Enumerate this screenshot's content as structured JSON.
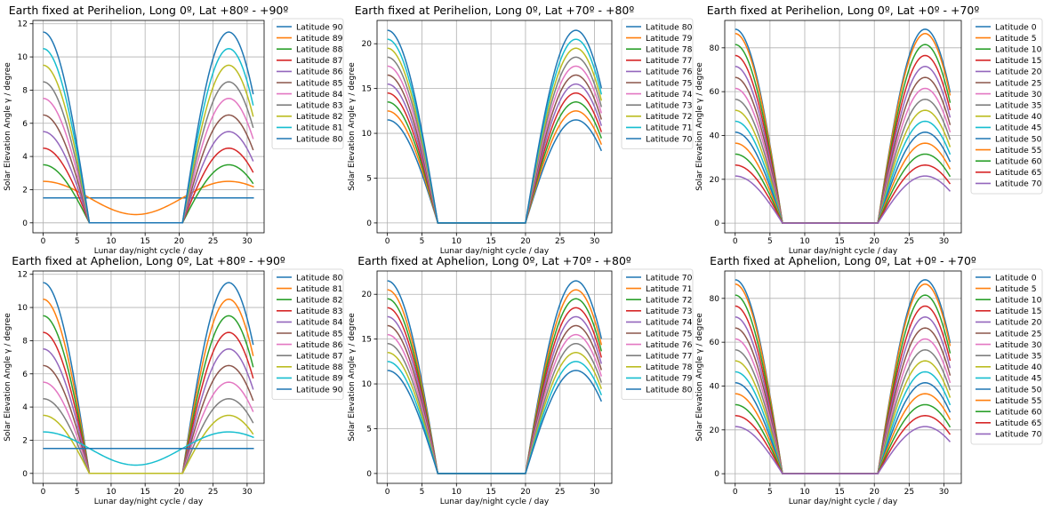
{
  "palette": [
    "#1f77b4",
    "#ff7f0e",
    "#2ca02c",
    "#d62728",
    "#9467bd",
    "#8c564b",
    "#e377c2",
    "#7f7f7f",
    "#bcbd22",
    "#17becf"
  ],
  "chart_data": [
    {
      "type": "line",
      "title": "Earth fixed at Perihelion, Long 0º, Lat +80º - +90º",
      "xlabel": "Lunar day/night cycle / day",
      "ylabel": "Solar Elevation Angle γ / degree",
      "xlim": [
        -1.5,
        32.5
      ],
      "ylim": [
        -0.6,
        12.2
      ],
      "xticks": [
        0,
        5,
        10,
        15,
        20,
        25,
        30
      ],
      "yticks": [
        0,
        2,
        4,
        6,
        8,
        10,
        12
      ],
      "grid": true,
      "legend_position": "outside-right",
      "x_range": [
        0,
        31
      ],
      "sunset_day": 6.8,
      "sunrise_day": 20.5,
      "series": [
        {
          "name": "Latitude 90",
          "peak_elevation": 1.5,
          "color_index": 0
        },
        {
          "name": "Latitude 89",
          "peak_elevation": 2.5,
          "color_index": 1
        },
        {
          "name": "Latitude 88",
          "peak_elevation": 3.5,
          "color_index": 2
        },
        {
          "name": "Latitude 87",
          "peak_elevation": 4.5,
          "color_index": 3
        },
        {
          "name": "Latitude 86",
          "peak_elevation": 5.5,
          "color_index": 4
        },
        {
          "name": "Latitude 85",
          "peak_elevation": 6.5,
          "color_index": 5
        },
        {
          "name": "Latitude 84",
          "peak_elevation": 7.5,
          "color_index": 6
        },
        {
          "name": "Latitude 83",
          "peak_elevation": 8.5,
          "color_index": 7
        },
        {
          "name": "Latitude 82",
          "peak_elevation": 9.5,
          "color_index": 8
        },
        {
          "name": "Latitude 81",
          "peak_elevation": 10.5,
          "color_index": 9
        },
        {
          "name": "Latitude 80",
          "peak_elevation": 11.5,
          "color_index": 0
        }
      ]
    },
    {
      "type": "line",
      "title": "Earth fixed at Perihelion, Long 0º, Lat +70º - +80º",
      "xlabel": "Lunar day/night cycle / day",
      "ylabel": "Solar Elevation Angle γ / degree",
      "xlim": [
        -1.5,
        32.5
      ],
      "ylim": [
        -1.1,
        22.6
      ],
      "xticks": [
        0,
        5,
        10,
        15,
        20,
        25,
        30
      ],
      "yticks": [
        0,
        5,
        10,
        15,
        20
      ],
      "grid": true,
      "legend_position": "outside-right",
      "x_range": [
        0,
        31
      ],
      "sunset_day": 7.3,
      "sunrise_day": 20,
      "series": [
        {
          "name": "Latitude 80",
          "peak_elevation": 11.5,
          "color_index": 0
        },
        {
          "name": "Latitude 79",
          "peak_elevation": 12.5,
          "color_index": 1
        },
        {
          "name": "Latitude 78",
          "peak_elevation": 13.5,
          "color_index": 2
        },
        {
          "name": "Latitude 77",
          "peak_elevation": 14.5,
          "color_index": 3
        },
        {
          "name": "Latitude 76",
          "peak_elevation": 15.5,
          "color_index": 4
        },
        {
          "name": "Latitude 75",
          "peak_elevation": 16.5,
          "color_index": 5
        },
        {
          "name": "Latitude 74",
          "peak_elevation": 17.5,
          "color_index": 6
        },
        {
          "name": "Latitude 73",
          "peak_elevation": 18.5,
          "color_index": 7
        },
        {
          "name": "Latitude 72",
          "peak_elevation": 19.5,
          "color_index": 8
        },
        {
          "name": "Latitude 71",
          "peak_elevation": 20.5,
          "color_index": 9
        },
        {
          "name": "Latitude 70",
          "peak_elevation": 21.5,
          "color_index": 0
        }
      ]
    },
    {
      "type": "line",
      "title": "Earth fixed at Perihelion, Long 0º, Lat +0º - +70º",
      "xlabel": "Lunar day/night cycle / day",
      "ylabel": "Solar Elevation Angle γ / degree",
      "xlim": [
        -1.5,
        32.5
      ],
      "ylim": [
        -4.4,
        92.5
      ],
      "xticks": [
        0,
        5,
        10,
        15,
        20,
        25,
        30
      ],
      "yticks": [
        0,
        20,
        40,
        60,
        80
      ],
      "grid": true,
      "legend_position": "outside-right",
      "x_range": [
        0,
        31
      ],
      "sunset_day": 6.8,
      "sunrise_day": 20.5,
      "series": [
        {
          "name": "Latitude 0",
          "peak_elevation": 88.5,
          "color_index": 0
        },
        {
          "name": "Latitude 5",
          "peak_elevation": 86.5,
          "color_index": 1
        },
        {
          "name": "Latitude 10",
          "peak_elevation": 81.5,
          "color_index": 2
        },
        {
          "name": "Latitude 15",
          "peak_elevation": 76.5,
          "color_index": 3
        },
        {
          "name": "Latitude 20",
          "peak_elevation": 71.5,
          "color_index": 4
        },
        {
          "name": "Latitude 25",
          "peak_elevation": 66.5,
          "color_index": 5
        },
        {
          "name": "Latitude 30",
          "peak_elevation": 61.5,
          "color_index": 6
        },
        {
          "name": "Latitude 35",
          "peak_elevation": 56.5,
          "color_index": 7
        },
        {
          "name": "Latitude 40",
          "peak_elevation": 51.5,
          "color_index": 8
        },
        {
          "name": "Latitude 45",
          "peak_elevation": 46.5,
          "color_index": 9
        },
        {
          "name": "Latitude 50",
          "peak_elevation": 41.5,
          "color_index": 0
        },
        {
          "name": "Latitude 55",
          "peak_elevation": 36.5,
          "color_index": 1
        },
        {
          "name": "Latitude 60",
          "peak_elevation": 31.5,
          "color_index": 2
        },
        {
          "name": "Latitude 65",
          "peak_elevation": 26.5,
          "color_index": 3
        },
        {
          "name": "Latitude 70",
          "peak_elevation": 21.5,
          "color_index": 4
        }
      ]
    },
    {
      "type": "line",
      "title": "Earth fixed at Aphelion, Long 0º, Lat +80º - +90º",
      "xlabel": "Lunar day/night cycle / day",
      "ylabel": "Solar Elevation Angle γ / degree",
      "xlim": [
        -1.5,
        32.5
      ],
      "ylim": [
        -0.6,
        12.2
      ],
      "xticks": [
        0,
        5,
        10,
        15,
        20,
        25,
        30
      ],
      "yticks": [
        0,
        2,
        4,
        6,
        8,
        10,
        12
      ],
      "grid": true,
      "legend_position": "outside-right",
      "x_range": [
        0,
        31
      ],
      "sunset_day": 6.8,
      "sunrise_day": 20.5,
      "series": [
        {
          "name": "Latitude 80",
          "peak_elevation": 11.5,
          "color_index": 0
        },
        {
          "name": "Latitude 81",
          "peak_elevation": 10.5,
          "color_index": 1
        },
        {
          "name": "Latitude 82",
          "peak_elevation": 9.5,
          "color_index": 2
        },
        {
          "name": "Latitude 83",
          "peak_elevation": 8.5,
          "color_index": 3
        },
        {
          "name": "Latitude 84",
          "peak_elevation": 7.5,
          "color_index": 4
        },
        {
          "name": "Latitude 85",
          "peak_elevation": 6.5,
          "color_index": 5
        },
        {
          "name": "Latitude 86",
          "peak_elevation": 5.5,
          "color_index": 6
        },
        {
          "name": "Latitude 87",
          "peak_elevation": 4.5,
          "color_index": 7
        },
        {
          "name": "Latitude 88",
          "peak_elevation": 3.5,
          "color_index": 8
        },
        {
          "name": "Latitude 89",
          "peak_elevation": 2.5,
          "color_index": 9
        },
        {
          "name": "Latitude 90",
          "peak_elevation": 1.5,
          "color_index": 0
        }
      ]
    },
    {
      "type": "line",
      "title": "Earth fixed at Aphelion, Long 0º, Lat +70º - +80º",
      "xlabel": "Lunar day/night cycle / day",
      "ylabel": "Solar Elevation Angle γ / degree",
      "xlim": [
        -1.5,
        32.5
      ],
      "ylim": [
        -1.1,
        22.6
      ],
      "xticks": [
        0,
        5,
        10,
        15,
        20,
        25,
        30
      ],
      "yticks": [
        0,
        5,
        10,
        15,
        20
      ],
      "grid": true,
      "legend_position": "outside-right",
      "x_range": [
        0,
        31
      ],
      "sunset_day": 7.3,
      "sunrise_day": 20,
      "series": [
        {
          "name": "Latitude 70",
          "peak_elevation": 21.5,
          "color_index": 0
        },
        {
          "name": "Latitude 71",
          "peak_elevation": 20.5,
          "color_index": 1
        },
        {
          "name": "Latitude 72",
          "peak_elevation": 19.5,
          "color_index": 2
        },
        {
          "name": "Latitude 73",
          "peak_elevation": 18.5,
          "color_index": 3
        },
        {
          "name": "Latitude 74",
          "peak_elevation": 17.5,
          "color_index": 4
        },
        {
          "name": "Latitude 75",
          "peak_elevation": 16.5,
          "color_index": 5
        },
        {
          "name": "Latitude 76",
          "peak_elevation": 15.5,
          "color_index": 6
        },
        {
          "name": "Latitude 77",
          "peak_elevation": 14.5,
          "color_index": 7
        },
        {
          "name": "Latitude 78",
          "peak_elevation": 13.5,
          "color_index": 8
        },
        {
          "name": "Latitude 79",
          "peak_elevation": 12.5,
          "color_index": 9
        },
        {
          "name": "Latitude 80",
          "peak_elevation": 11.5,
          "color_index": 0
        }
      ]
    },
    {
      "type": "line",
      "title": "Earth fixed at Aphelion, Long 0º, Lat +0º - +70º",
      "xlabel": "Lunar day/night cycle / day",
      "ylabel": "Solar Elevation Angle γ / degree",
      "xlim": [
        -1.5,
        32.5
      ],
      "ylim": [
        -4.4,
        92.5
      ],
      "xticks": [
        0,
        5,
        10,
        15,
        20,
        25,
        30
      ],
      "yticks": [
        0,
        20,
        40,
        60,
        80
      ],
      "grid": true,
      "legend_position": "outside-right",
      "x_range": [
        0,
        31
      ],
      "sunset_day": 6.8,
      "sunrise_day": 20.5,
      "series": [
        {
          "name": "Latitude 0",
          "peak_elevation": 88.5,
          "color_index": 0
        },
        {
          "name": "Latitude 5",
          "peak_elevation": 86.5,
          "color_index": 1
        },
        {
          "name": "Latitude 10",
          "peak_elevation": 81.5,
          "color_index": 2
        },
        {
          "name": "Latitude 15",
          "peak_elevation": 76.5,
          "color_index": 3
        },
        {
          "name": "Latitude 20",
          "peak_elevation": 71.5,
          "color_index": 4
        },
        {
          "name": "Latitude 25",
          "peak_elevation": 66.5,
          "color_index": 5
        },
        {
          "name": "Latitude 30",
          "peak_elevation": 61.5,
          "color_index": 6
        },
        {
          "name": "Latitude 35",
          "peak_elevation": 56.5,
          "color_index": 7
        },
        {
          "name": "Latitude 40",
          "peak_elevation": 51.5,
          "color_index": 8
        },
        {
          "name": "Latitude 45",
          "peak_elevation": 46.5,
          "color_index": 9
        },
        {
          "name": "Latitude 50",
          "peak_elevation": 41.5,
          "color_index": 0
        },
        {
          "name": "Latitude 55",
          "peak_elevation": 36.5,
          "color_index": 1
        },
        {
          "name": "Latitude 60",
          "peak_elevation": 31.5,
          "color_index": 2
        },
        {
          "name": "Latitude 65",
          "peak_elevation": 26.5,
          "color_index": 3
        },
        {
          "name": "Latitude 70",
          "peak_elevation": 21.5,
          "color_index": 4
        }
      ]
    }
  ]
}
